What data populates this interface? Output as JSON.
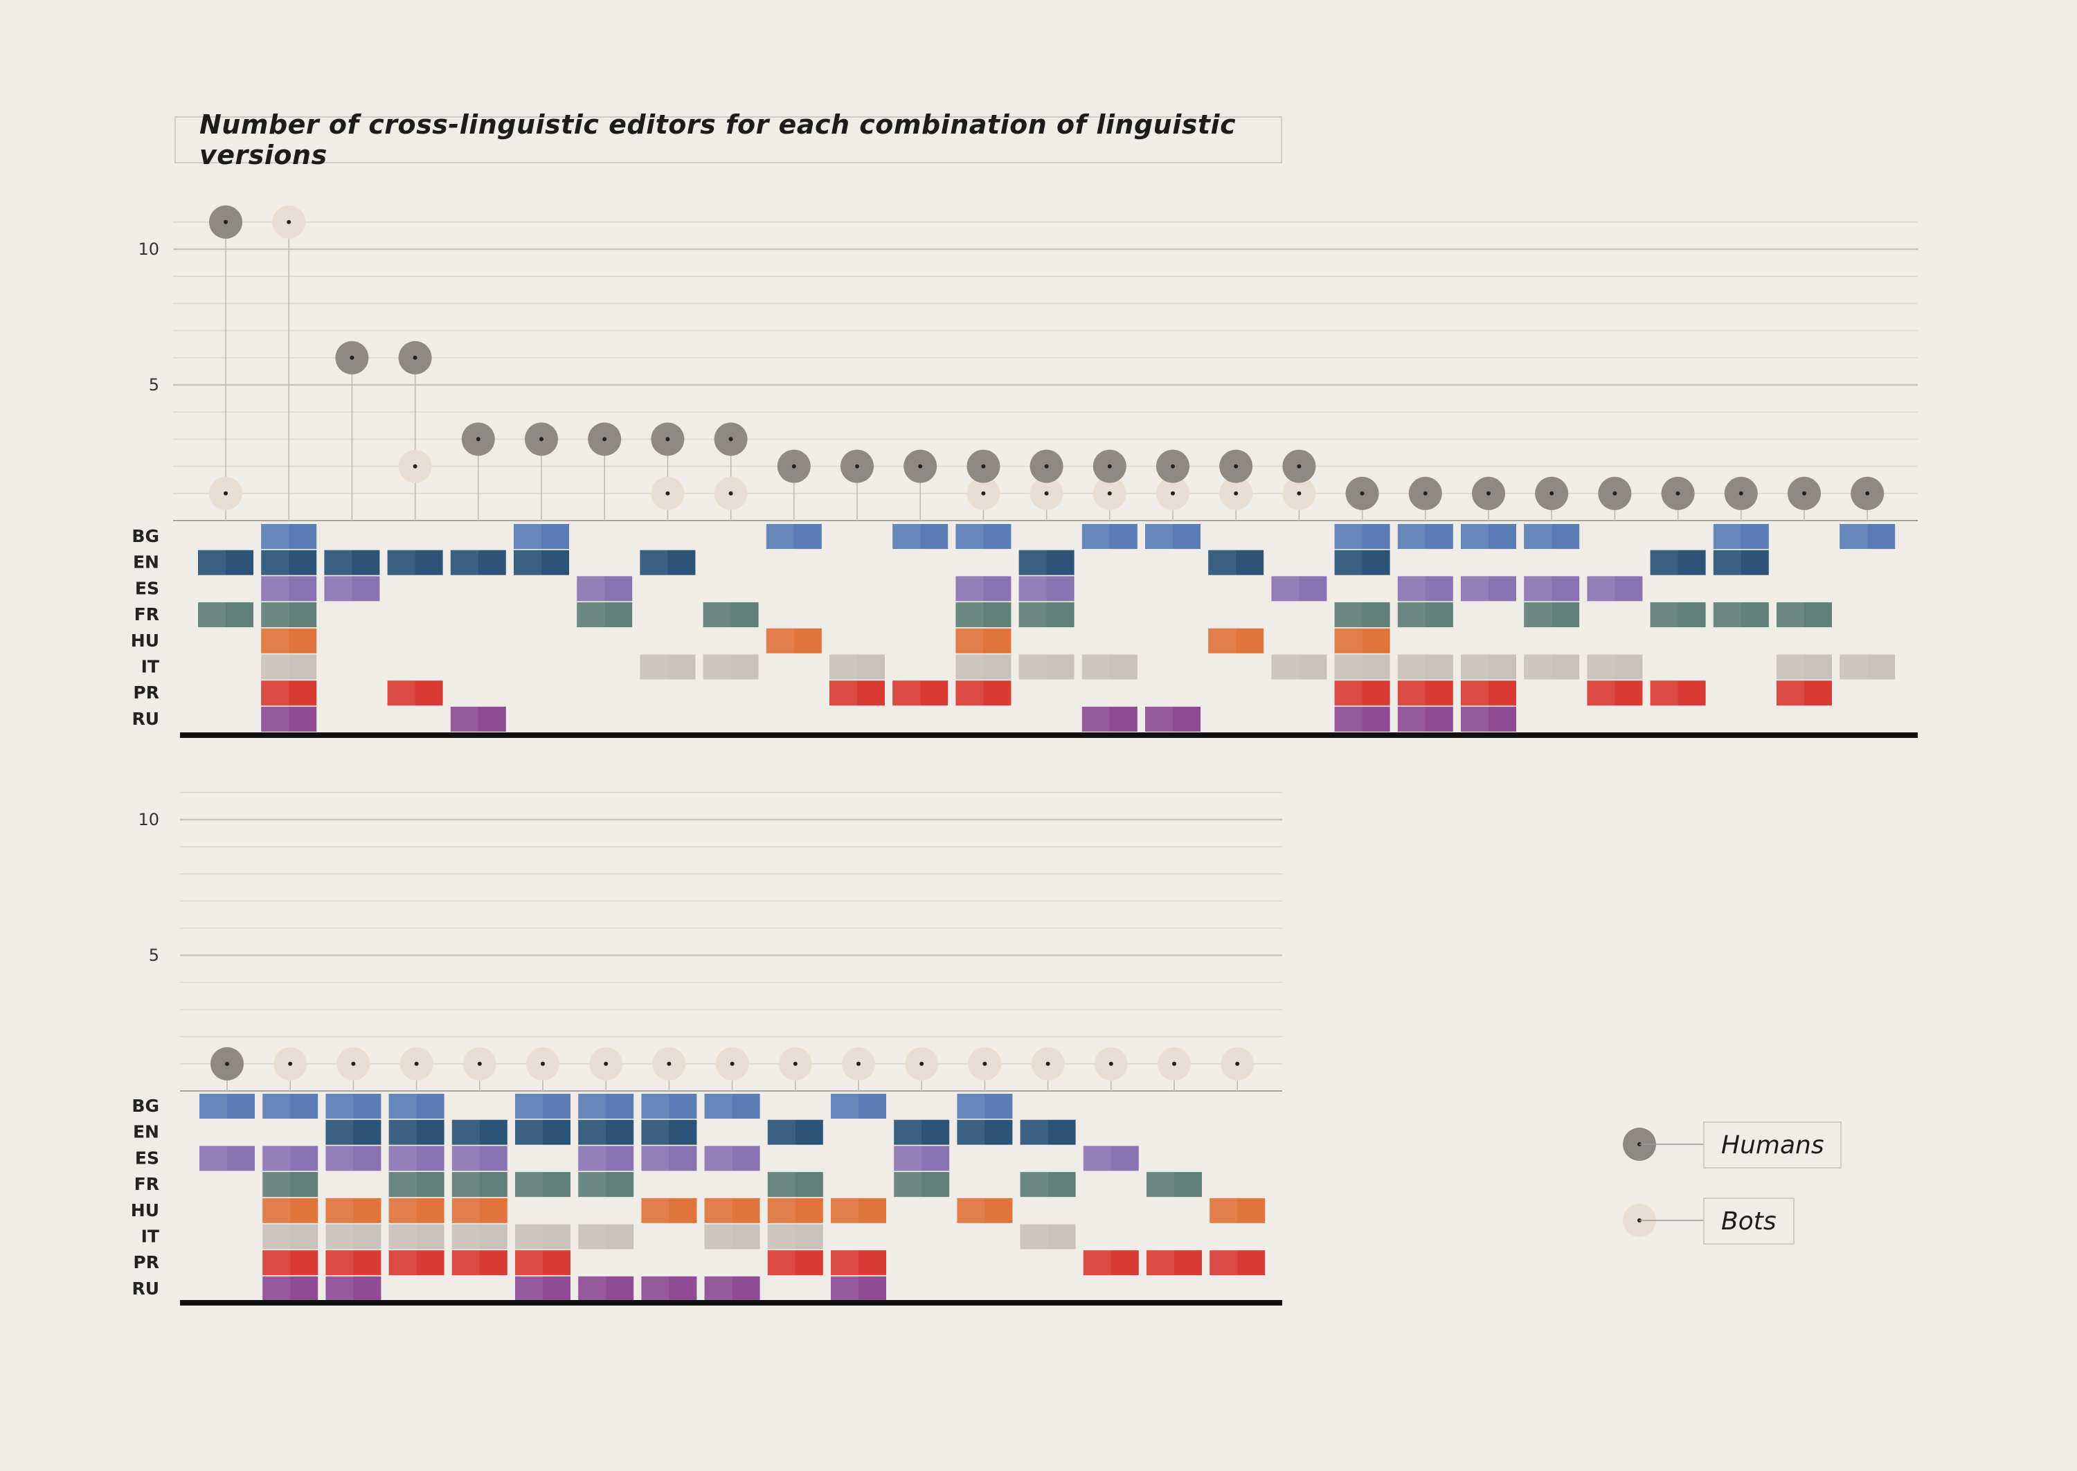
{
  "title": "Number of cross-linguistic editors for each combination of linguistic versions",
  "legend": {
    "humans": "Humans",
    "bots": "Bots"
  },
  "colors": {
    "BG": "#5b7db5",
    "EN": "#2b5478",
    "ES": "#8a73b3",
    "FR": "#5f7f78",
    "HU": "#e0743a",
    "IT": "#c9c1bb",
    "PR": "#d93b35",
    "RU": "#8f4b96",
    "humans": "#8e8984",
    "bots": "#e8dfd2"
  },
  "chart_data": [
    {
      "type": "scatter",
      "panel": "top",
      "title": "Number of cross-linguistic editors for each combination of linguistic versions",
      "ylim": [
        0,
        11
      ],
      "yticks": [
        5,
        10
      ],
      "languages": [
        "BG",
        "EN",
        "ES",
        "FR",
        "HU",
        "IT",
        "PR",
        "RU"
      ],
      "series": [
        {
          "name": "Humans",
          "values": [
            11,
            0,
            6,
            6,
            3,
            3,
            3,
            3,
            3,
            2,
            2,
            2,
            2,
            2,
            2,
            2,
            2,
            2,
            1,
            1,
            1,
            1,
            1,
            1,
            1,
            1,
            1
          ]
        },
        {
          "name": "Bots",
          "values": [
            1,
            11,
            0,
            2,
            0,
            0,
            0,
            1,
            1,
            0,
            0,
            0,
            1,
            1,
            1,
            1,
            1,
            1,
            0,
            0,
            0,
            0,
            0,
            0,
            0,
            0,
            0
          ]
        }
      ],
      "combinations": [
        [
          "EN",
          "FR"
        ],
        [
          "BG",
          "EN",
          "ES",
          "FR",
          "HU",
          "IT",
          "PR",
          "RU"
        ],
        [
          "EN",
          "ES"
        ],
        [
          "EN",
          "PR"
        ],
        [
          "EN",
          "RU"
        ],
        [
          "BG",
          "EN"
        ],
        [
          "ES",
          "FR"
        ],
        [
          "EN",
          "IT"
        ],
        [
          "FR",
          "IT"
        ],
        [
          "BG",
          "HU"
        ],
        [
          "IT",
          "PR"
        ],
        [
          "BG",
          "PR"
        ],
        [
          "BG",
          "ES",
          "FR",
          "HU",
          "IT",
          "PR"
        ],
        [
          "EN",
          "ES",
          "FR",
          "IT"
        ],
        [
          "BG",
          "IT",
          "RU"
        ],
        [
          "BG",
          "RU"
        ],
        [
          "EN",
          "HU"
        ],
        [
          "ES",
          "IT"
        ],
        [
          "BG",
          "EN",
          "FR",
          "HU",
          "IT",
          "PR",
          "RU"
        ],
        [
          "BG",
          "ES",
          "FR",
          "IT",
          "PR",
          "RU"
        ],
        [
          "BG",
          "ES",
          "IT",
          "PR",
          "RU"
        ],
        [
          "BG",
          "ES",
          "FR",
          "IT"
        ],
        [
          "ES",
          "IT",
          "PR"
        ],
        [
          "EN",
          "FR",
          "PR"
        ],
        [
          "BG",
          "EN",
          "FR"
        ],
        [
          "FR",
          "IT",
          "PR"
        ],
        [
          "BG",
          "IT"
        ]
      ]
    },
    {
      "type": "scatter",
      "panel": "bottom",
      "ylim": [
        0,
        11
      ],
      "yticks": [
        5,
        10
      ],
      "languages": [
        "BG",
        "EN",
        "ES",
        "FR",
        "HU",
        "IT",
        "PR",
        "RU"
      ],
      "series": [
        {
          "name": "Humans",
          "values": [
            1,
            0,
            0,
            0,
            0,
            0,
            0,
            0,
            0,
            0,
            0,
            0,
            0,
            0,
            0,
            0,
            0
          ]
        },
        {
          "name": "Bots",
          "values": [
            0,
            1,
            1,
            1,
            1,
            1,
            1,
            1,
            1,
            1,
            1,
            1,
            1,
            1,
            1,
            1,
            1
          ]
        }
      ],
      "combinations": [
        [
          "BG",
          "ES"
        ],
        [
          "BG",
          "ES",
          "FR",
          "HU",
          "IT",
          "PR",
          "RU"
        ],
        [
          "BG",
          "EN",
          "ES",
          "HU",
          "IT",
          "PR",
          "RU"
        ],
        [
          "BG",
          "EN",
          "ES",
          "FR",
          "HU",
          "IT",
          "PR"
        ],
        [
          "EN",
          "ES",
          "FR",
          "HU",
          "IT",
          "PR"
        ],
        [
          "BG",
          "EN",
          "FR",
          "IT",
          "PR",
          "RU"
        ],
        [
          "BG",
          "EN",
          "ES",
          "FR",
          "IT",
          "RU"
        ],
        [
          "BG",
          "EN",
          "ES",
          "HU",
          "RU"
        ],
        [
          "BG",
          "ES",
          "HU",
          "IT",
          "RU"
        ],
        [
          "EN",
          "FR",
          "HU",
          "IT",
          "PR"
        ],
        [
          "BG",
          "HU",
          "PR",
          "RU"
        ],
        [
          "EN",
          "ES",
          "FR"
        ],
        [
          "BG",
          "EN",
          "HU"
        ],
        [
          "EN",
          "FR",
          "IT"
        ],
        [
          "ES",
          "PR"
        ],
        [
          "FR",
          "PR"
        ],
        [
          "HU",
          "PR"
        ]
      ]
    }
  ]
}
